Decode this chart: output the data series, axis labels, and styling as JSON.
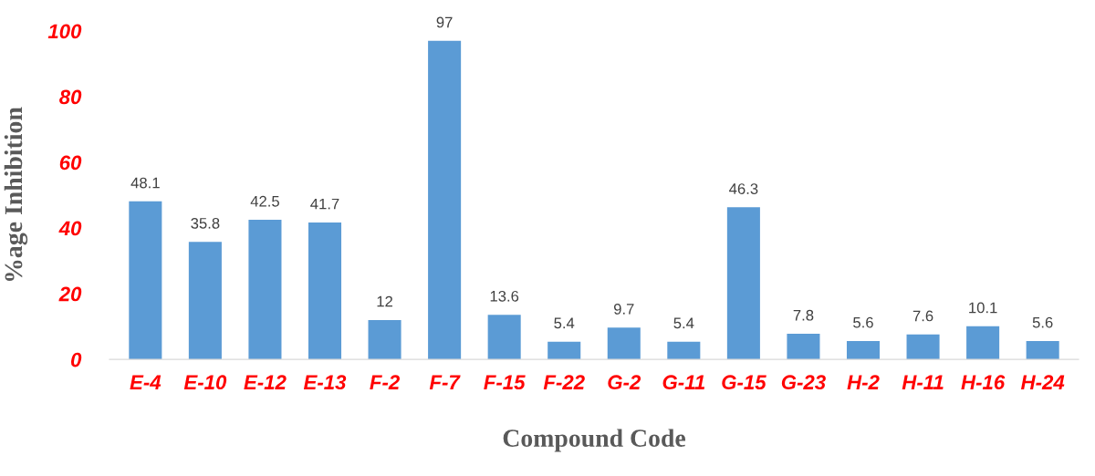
{
  "chart_data": {
    "type": "bar",
    "xlabel": "Compound Code",
    "ylabel": "%age Inhibition",
    "categories": [
      "E-4",
      "E-10",
      "E-12",
      "E-13",
      "F-2",
      "F-7",
      "F-15",
      "F-22",
      "G-2",
      "G-11",
      "G-15",
      "G-23",
      "H-2",
      "H-11",
      "H-16",
      "H-24"
    ],
    "values": [
      48.1,
      35.8,
      42.5,
      41.7,
      12,
      97,
      13.6,
      5.4,
      9.7,
      5.4,
      46.3,
      7.8,
      5.6,
      7.6,
      10.1,
      5.6
    ],
    "color": "#5b9bd5",
    "ylim": [
      0,
      100
    ],
    "yticks": [
      0,
      20,
      40,
      60,
      80,
      100
    ],
    "data_labels": true,
    "grid": false,
    "legend": false
  }
}
